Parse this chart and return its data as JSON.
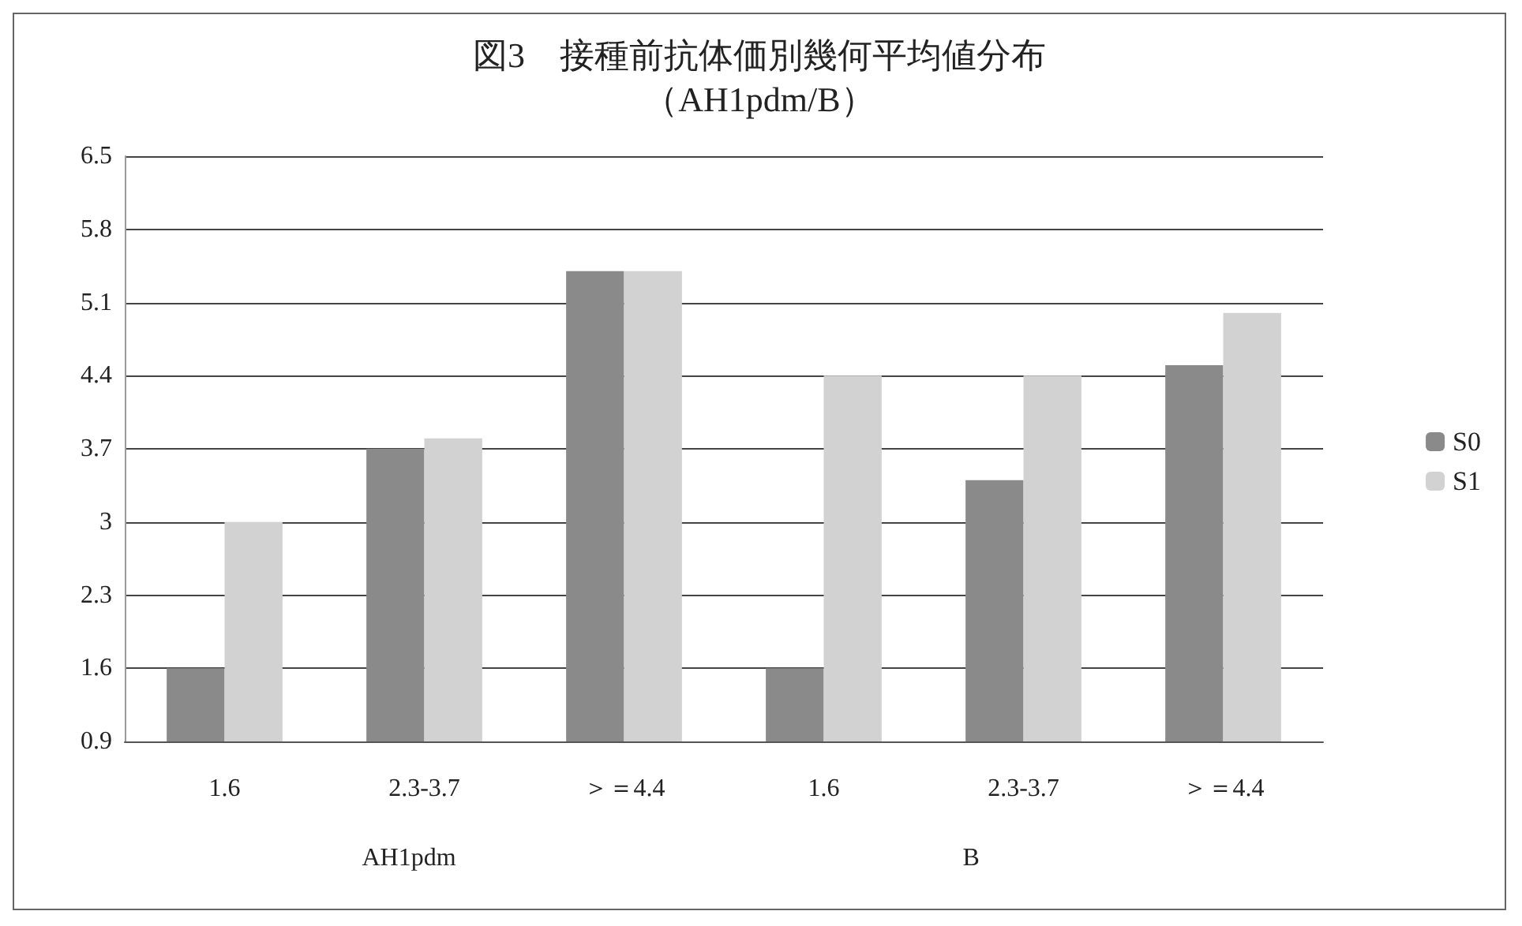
{
  "chart_data": {
    "type": "bar",
    "title": "図3　接種前抗体価別幾何平均値分布",
    "subtitle": "（AH1pdm/B）",
    "categories": [
      "1.6",
      "2.3-3.7",
      "＞＝4.4",
      "1.6",
      "2.3-3.7",
      "＞＝4.4"
    ],
    "series": [
      {
        "name": "S0",
        "color": "#8a8a8a",
        "values": [
          1.6,
          3.7,
          5.4,
          1.6,
          3.4,
          4.5
        ]
      },
      {
        "name": "S1",
        "color": "#d2d2d2",
        "values": [
          3.0,
          3.8,
          5.4,
          4.4,
          4.4,
          5.0
        ]
      }
    ],
    "ylim": [
      0.9,
      6.5
    ],
    "yticks": [
      0.9,
      1.6,
      2.3,
      3,
      3.7,
      4.4,
      5.1,
      5.8,
      6.5
    ],
    "grid": "y",
    "legend": "right",
    "annotations": [
      "AH1pdm",
      "B"
    ]
  }
}
